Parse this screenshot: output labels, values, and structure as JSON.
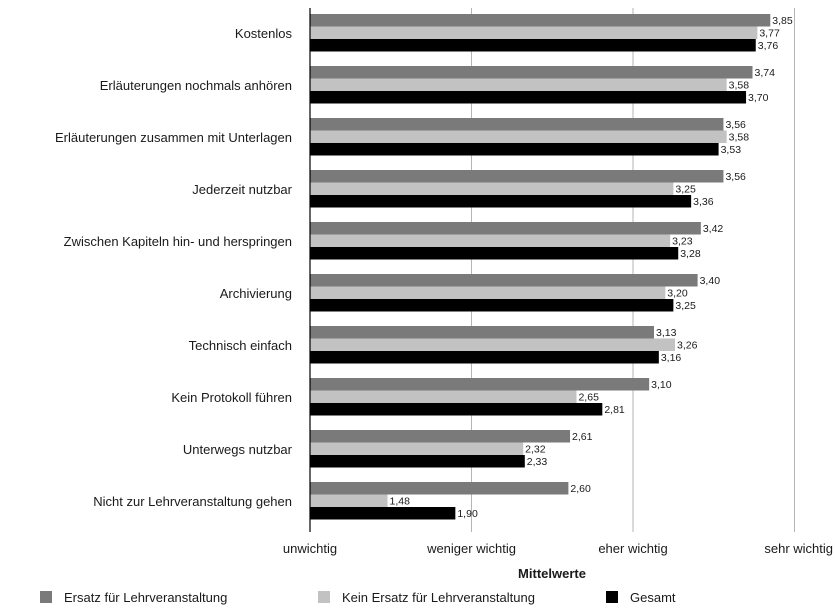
{
  "chart_data": {
    "type": "bar",
    "orientation": "horizontal",
    "title": "",
    "xlabel": "Mittelwerte",
    "ylabel": "",
    "xlim": [
      1,
      4
    ],
    "x_ticks": [
      {
        "value": 1,
        "label": "unwichtig"
      },
      {
        "value": 2,
        "label": "weniger wichtig"
      },
      {
        "value": 3,
        "label": "eher wichtig"
      },
      {
        "value": 4,
        "label": "sehr wichtig"
      }
    ],
    "grid": "vertical",
    "legend_position": "bottom",
    "categories": [
      "Kostenlos",
      "Erläuterungen nochmals anhören",
      "Erläuterungen zusammen mit Unterlagen",
      "Jederzeit nutzbar",
      "Zwischen Kapiteln hin- und herspringen",
      "Archivierung",
      "Technisch einfach",
      "Kein Protokoll führen",
      "Unterwegs nutzbar",
      "Nicht zur Lehrveranstaltung gehen"
    ],
    "series": [
      {
        "name": "Ersatz für Lehrveranstaltung",
        "color": "#7a7a7a",
        "values": [
          3.85,
          3.74,
          3.56,
          3.56,
          3.42,
          3.4,
          3.13,
          3.1,
          2.61,
          2.6
        ],
        "labels": [
          "3,85",
          "3,74",
          "3,56",
          "3,56",
          "3,42",
          "3,40",
          "3,13",
          "3,10",
          "2,61",
          "2,60"
        ]
      },
      {
        "name": "Kein Ersatz für Lehrveranstaltung",
        "color": "#c2c2c2",
        "values": [
          3.77,
          3.58,
          3.58,
          3.25,
          3.23,
          3.2,
          3.26,
          2.65,
          2.32,
          1.48
        ],
        "labels": [
          "3,77",
          "3,58",
          "3,58",
          "3,25",
          "3,23",
          "3,20",
          "3,26",
          "2,65",
          "2,32",
          "1,48"
        ]
      },
      {
        "name": "Gesamt",
        "color": "#000000",
        "values": [
          3.76,
          3.7,
          3.53,
          3.36,
          3.28,
          3.25,
          3.16,
          2.81,
          2.33,
          1.9
        ],
        "labels": [
          "3,76",
          "3,70",
          "3,53",
          "3,36",
          "3,28",
          "3,25",
          "3,16",
          "2,81",
          "2,33",
          "1,90"
        ]
      }
    ]
  }
}
